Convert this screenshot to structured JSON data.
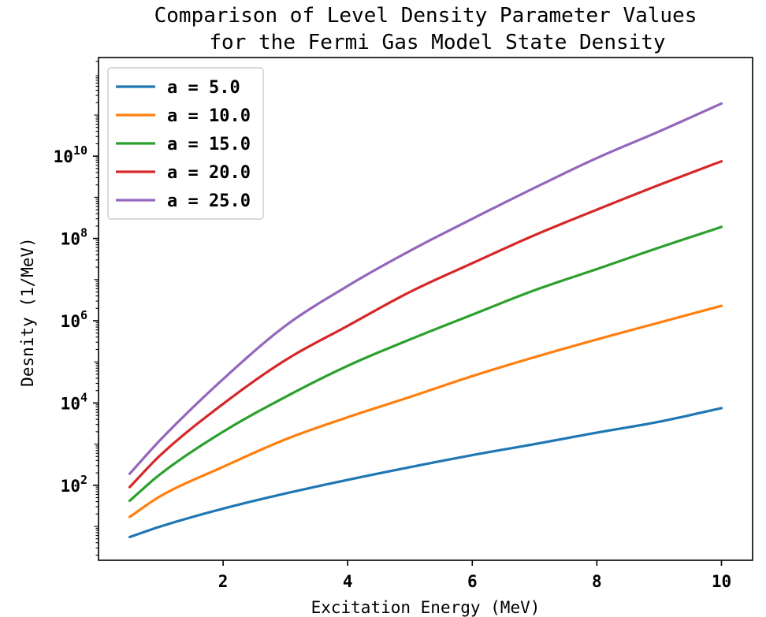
{
  "chart_data": {
    "type": "line",
    "title": "Comparison of Level Density Parameter Values\nfor the Fermi Gas Model State Density",
    "xlabel": "Excitation Energy (MeV)",
    "ylabel": "Desnity (1/MeV)",
    "xlim": [
      0.0,
      10.5
    ],
    "ylim": [
      1.5,
      2500000000000.0
    ],
    "yscale": "log",
    "xticks": [
      2,
      4,
      6,
      8,
      10
    ],
    "xtick_labels": [
      "2",
      "4",
      "6",
      "8",
      "10"
    ],
    "yticks": [
      100,
      10000,
      1000000,
      100000000,
      10000000000
    ],
    "ytick_labels": [
      {
        "base": "10",
        "exp": "2"
      },
      {
        "base": "10",
        "exp": "4"
      },
      {
        "base": "10",
        "exp": "6"
      },
      {
        "base": "10",
        "exp": "8"
      },
      {
        "base": "10",
        "exp": "10"
      }
    ],
    "grid": false,
    "legend_position": "upper-left",
    "series": [
      {
        "name": "a = 5.0",
        "color": "#1f77b4",
        "x": [
          0.5,
          1,
          2,
          3,
          4,
          5,
          6,
          7,
          8,
          9,
          10
        ],
        "y": [
          5.5,
          10,
          27,
          63,
          135,
          275,
          540,
          1000,
          1900,
          3500,
          7500
        ]
      },
      {
        "name": "a = 10.0",
        "color": "#ff7f0e",
        "x": [
          0.5,
          1,
          2,
          3,
          4,
          5,
          6,
          7,
          8,
          9,
          10
        ],
        "y": [
          17,
          55,
          280,
          1300,
          4500,
          14000,
          45000,
          130000,
          350000,
          900000,
          2300000
        ]
      },
      {
        "name": "a = 15.0",
        "color": "#2ca02c",
        "x": [
          0.5,
          1,
          2,
          3,
          4,
          5,
          6,
          7,
          8,
          9,
          10
        ],
        "y": [
          42,
          190,
          2000,
          14000,
          80000,
          350000,
          1400000,
          5500000,
          18000000,
          60000000,
          190000000
        ]
      },
      {
        "name": "a = 20.0",
        "color": "#d62728",
        "x": [
          0.5,
          1,
          2,
          3,
          4,
          5,
          6,
          7,
          8,
          9,
          10
        ],
        "y": [
          90,
          550,
          9500,
          110000,
          750000,
          5000000,
          25000000,
          120000000,
          500000000,
          2000000000,
          7500000000
        ]
      },
      {
        "name": "a = 25.0",
        "color": "#9467bd",
        "x": [
          0.5,
          1,
          2,
          3,
          4,
          5,
          6,
          7,
          8,
          9,
          10
        ],
        "y": [
          190,
          1300,
          38000,
          750000,
          7000000,
          50000000,
          300000000,
          1700000000,
          9000000000,
          40000000000,
          190000000000
        ]
      }
    ]
  }
}
